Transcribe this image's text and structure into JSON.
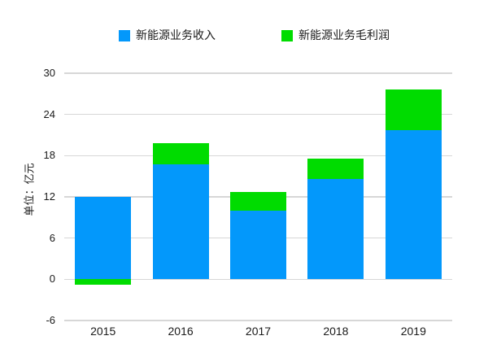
{
  "chart_data": {
    "type": "bar",
    "stacked": true,
    "title": "",
    "xlabel": "",
    "ylabel": "单位：亿元",
    "categories": [
      "2015",
      "2016",
      "2017",
      "2018",
      "2019"
    ],
    "series": [
      {
        "name": "新能源业务收入",
        "color": "#0398fb",
        "values": [
          12.0,
          16.7,
          10.0,
          14.6,
          21.7
        ]
      },
      {
        "name": "新能源业务毛利润",
        "color": "#00dc00",
        "values": [
          -0.8,
          3.1,
          2.7,
          3.0,
          5.9
        ]
      }
    ],
    "ylim": [
      -6,
      30
    ],
    "yticks": [
      30,
      24,
      18,
      12,
      6,
      0,
      -6
    ],
    "grid": true,
    "grid_color": "#d7d7d7",
    "legend_position": "top",
    "background": "#ffffff"
  }
}
